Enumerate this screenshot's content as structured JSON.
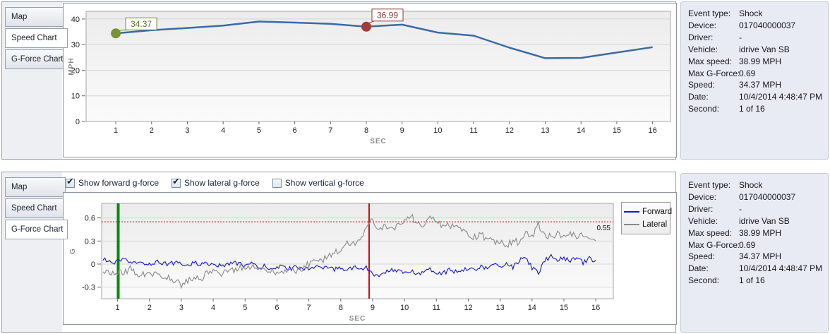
{
  "tabs": {
    "items": [
      "Map",
      "Speed Chart",
      "G-Force Chart"
    ],
    "top_selected_index": 1,
    "bottom_selected_index": 2
  },
  "gforce_controls": {
    "checkboxes": [
      {
        "label": "Show forward g-force",
        "checked": true
      },
      {
        "label": "Show lateral g-force",
        "checked": true
      },
      {
        "label": "Show vertical g-force",
        "checked": false
      }
    ]
  },
  "info": {
    "rows": [
      {
        "label": "Event type:",
        "value": "Shock"
      },
      {
        "label": "Device:",
        "value": "017040000037"
      },
      {
        "label": "Driver:",
        "value": "-"
      },
      {
        "label": "Vehicle:",
        "value": "idrive Van SB"
      },
      {
        "label": "Max speed:",
        "value": "38.99 MPH"
      },
      {
        "label": "Max G-Force:",
        "value": "0.69"
      },
      {
        "label": "Speed:",
        "value": "34.37 MPH"
      },
      {
        "label": "Date:",
        "value": "10/4/2014 4:48:47 PM"
      },
      {
        "label": "Second:",
        "value": "1 of 16"
      }
    ]
  },
  "chart_data": [
    {
      "type": "line",
      "title": "",
      "xlabel": "SEC",
      "ylabel": "MPH",
      "x": [
        1,
        2,
        3,
        4,
        5,
        6,
        7,
        8,
        9,
        10,
        11,
        12,
        13,
        14,
        15,
        16
      ],
      "series": [
        {
          "name": "Speed",
          "color": "#3a6ba6",
          "values": [
            34.37,
            35.6,
            36.5,
            37.4,
            38.99,
            38.6,
            38.1,
            36.99,
            37.8,
            34.7,
            33.5,
            28.8,
            24.7,
            24.8,
            26.9,
            29.0
          ]
        }
      ],
      "yticks": [
        0,
        10,
        20,
        30,
        40
      ],
      "xticks": [
        1,
        2,
        3,
        4,
        5,
        6,
        7,
        8,
        9,
        10,
        11,
        12,
        13,
        14,
        15,
        16
      ],
      "ylim": [
        0,
        43
      ],
      "xlim": [
        0.17,
        16.5
      ],
      "grid": "horizontal",
      "markers": [
        {
          "x": 1,
          "y": 34.37,
          "label": "34.37",
          "fill": "#7a9336",
          "border": "#6d8a2a",
          "text_color": "#5c7426"
        },
        {
          "x": 8,
          "y": 36.99,
          "label": "36.99",
          "fill": "#a03c3c",
          "border": "#8f3a3a",
          "text_color": "#8f3a3a"
        }
      ]
    },
    {
      "type": "line",
      "title": "",
      "xlabel": "SEC",
      "ylabel": "G",
      "yticks": [
        -0.3,
        0,
        0.3,
        0.6
      ],
      "xticks": [
        1,
        2,
        3,
        4,
        5,
        6,
        7,
        8,
        9,
        10,
        11,
        12,
        13,
        14,
        15,
        16
      ],
      "ylim": [
        -0.45,
        0.79
      ],
      "xlim": [
        0.5,
        16.55
      ],
      "grid": "horizontal",
      "series": [
        {
          "name": "Forward",
          "color": "#1515d0",
          "x0": 0.6,
          "dx": 0.2,
          "noise": 0.03,
          "values": [
            0.05,
            0.02,
            0.03,
            0.05,
            0.03,
            0.0,
            0.02,
            0.0,
            0.03,
            0.02,
            0.0,
            0.02,
            0.0,
            -0.02,
            0.02,
            0.0,
            0.02,
            -0.03,
            0.0,
            -0.02,
            0.02,
            0.0,
            -0.02,
            0.0,
            -0.05,
            -0.03,
            -0.05,
            -0.05,
            -0.03,
            -0.06,
            -0.04,
            -0.05,
            -0.05,
            -0.04,
            -0.06,
            -0.05,
            -0.07,
            -0.05,
            -0.06,
            -0.04,
            -0.07,
            -0.05,
            -0.12,
            -0.18,
            -0.1,
            -0.06,
            -0.1,
            -0.12,
            -0.08,
            -0.12,
            -0.1,
            -0.06,
            -0.1,
            -0.12,
            -0.08,
            -0.1,
            -0.07,
            -0.05,
            -0.08,
            -0.03,
            -0.06,
            0.0,
            -0.05,
            0.02,
            -0.04,
            0.05,
            0.08,
            -0.05,
            -0.12,
            0.05,
            0.1,
            0.05,
            0.08,
            0.03,
            0.08,
            0.02,
            0.07,
            0.05
          ]
        },
        {
          "name": "Lateral",
          "color": "#8a8a8a",
          "x0": 0.6,
          "dx": 0.2,
          "noise": 0.045,
          "values": [
            -0.1,
            -0.13,
            -0.1,
            -0.12,
            -0.05,
            -0.13,
            -0.12,
            -0.15,
            -0.13,
            -0.16,
            -0.18,
            -0.22,
            -0.27,
            -0.22,
            -0.18,
            -0.2,
            -0.12,
            -0.1,
            -0.12,
            -0.1,
            -0.08,
            -0.05,
            -0.03,
            -0.05,
            -0.03,
            -0.05,
            -0.08,
            -0.1,
            -0.08,
            -0.1,
            -0.08,
            -0.05,
            0.0,
            0.02,
            0.05,
            0.1,
            0.15,
            0.2,
            0.28,
            0.25,
            0.3,
            0.45,
            0.58,
            0.45,
            0.48,
            0.45,
            0.5,
            0.55,
            0.65,
            0.5,
            0.52,
            0.6,
            0.55,
            0.5,
            0.52,
            0.48,
            0.42,
            0.4,
            0.35,
            0.38,
            0.32,
            0.3,
            0.28,
            0.25,
            0.3,
            0.28,
            0.42,
            0.35,
            0.52,
            0.38,
            0.35,
            0.4,
            0.35,
            0.42,
            0.35,
            0.38,
            0.32,
            0.3
          ]
        }
      ],
      "threshold": {
        "y": 0.55,
        "label": "0.55",
        "color": "#cc0000"
      },
      "vlines": [
        {
          "x": 1.02,
          "color": "#0a8a0a",
          "width": 4,
          "name": "start-second-line"
        },
        {
          "x": 8.89,
          "color": "#cc1111",
          "width": 2,
          "name": "event-second-line"
        }
      ],
      "legend": {
        "position": "right",
        "entries": [
          "Forward",
          "Lateral"
        ]
      }
    }
  ]
}
